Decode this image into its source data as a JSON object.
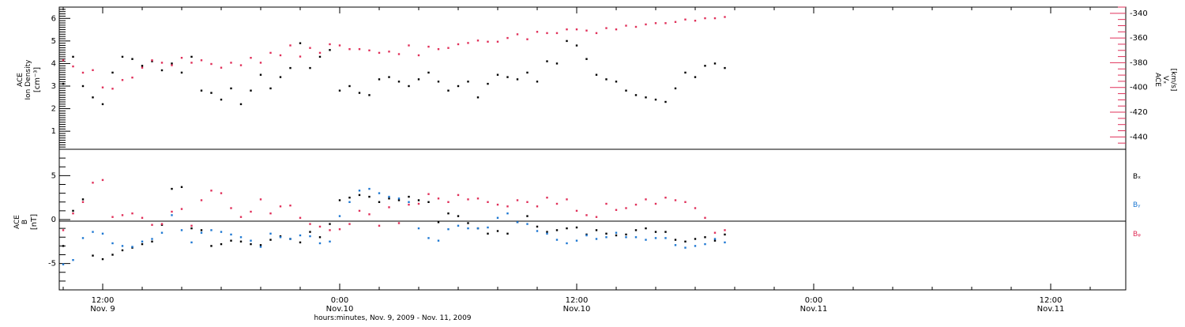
{
  "colors": {
    "black": "#000000",
    "pink": "#e0305a",
    "blue": "#1e78d2",
    "axis": "#000000"
  },
  "x_axis": {
    "caption": "hours:minutes, Nov.  9, 2009 - Nov. 11, 2009",
    "range_hours": [
      -14.2,
      39.8
    ],
    "ticks": [
      {
        "h": -12,
        "time": "12:00",
        "date": "Nov. 9"
      },
      {
        "h": 0,
        "time": "0:00",
        "date": "Nov.10"
      },
      {
        "h": 12,
        "time": "12:00",
        "date": "Nov.10"
      },
      {
        "h": 24,
        "time": "0:00",
        "date": "Nov.11"
      },
      {
        "h": 36,
        "time": "12:00",
        "date": "Nov.11"
      }
    ]
  },
  "chart_data": [
    {
      "type": "scatter",
      "title": "",
      "ylabel_lines": [
        "ACE",
        "Ion Density"
      ],
      "yunit": "[cm⁻³]",
      "ylim": [
        0.2,
        6.5
      ],
      "yticks": [
        1,
        2,
        3,
        4,
        5,
        6
      ],
      "y2label_lines": [
        "ACE",
        "Vₓ"
      ],
      "y2unit": "[km/s]",
      "y2lim": [
        -450,
        -335
      ],
      "y2ticks": [
        -440,
        -420,
        -400,
        -380,
        -360,
        -340
      ],
      "series": [
        {
          "key": "density",
          "color": "pink_black",
          "axis": "left",
          "x": [
            -14,
            -13.5,
            -13,
            -12.5,
            -12,
            -11.5,
            -11,
            -10.5,
            -10,
            -9.5,
            -9,
            -8.5,
            -8,
            -7.5,
            -7,
            -6.5,
            -6,
            -5.5,
            -5,
            -4.5,
            -4,
            -3.5,
            -3,
            -2.5,
            -2,
            -1.5,
            -1,
            -0.5,
            0,
            0.5,
            1,
            1.5,
            2,
            2.5,
            3,
            3.5,
            4,
            4.5,
            5,
            5.5,
            6,
            6.5,
            7,
            7.5,
            8,
            8.5,
            9,
            9.5,
            10,
            10.5,
            11,
            11.5,
            12,
            12.5,
            13,
            13.5,
            14,
            14.5,
            15,
            15.5,
            16,
            16.5,
            17,
            17.5,
            18,
            18.5,
            19,
            19.5
          ],
          "y": [
            3.1,
            4.3,
            3.0,
            2.5,
            2.2,
            3.6,
            4.3,
            4.2,
            3.9,
            4.1,
            3.7,
            4.0,
            3.6,
            4.3,
            2.8,
            2.7,
            2.4,
            2.9,
            2.2,
            2.8,
            3.5,
            2.9,
            3.4,
            3.8,
            4.9,
            3.8,
            4.3,
            4.6,
            2.8,
            3.0,
            2.7,
            2.6,
            3.3,
            3.4,
            3.2,
            3.0,
            3.3,
            3.6,
            3.2,
            2.8,
            3.0,
            3.2,
            2.5,
            3.1,
            3.5,
            3.4,
            3.3,
            3.6,
            3.2,
            4.1,
            4.0,
            5.0,
            4.8,
            4.2,
            3.5,
            3.3,
            3.2,
            2.8,
            2.6,
            2.5,
            2.4,
            2.3,
            2.9,
            3.6,
            3.4,
            3.9,
            4.0,
            3.8
          ]
        },
        {
          "key": "vx",
          "color": "pink",
          "axis": "right",
          "x": [
            -14,
            -13.5,
            -13,
            -12.5,
            -12,
            -11.5,
            -11,
            -10.5,
            -10,
            -9.5,
            -9,
            -8.5,
            -8,
            -7.5,
            -7,
            -6.5,
            -6,
            -5.5,
            -5,
            -4.5,
            -4,
            -3.5,
            -3,
            -2.5,
            -2,
            -1.5,
            -1,
            -0.5,
            0,
            0.5,
            1,
            1.5,
            2,
            2.5,
            3,
            3.5,
            4,
            4.5,
            5,
            5.5,
            6,
            6.5,
            7,
            7.5,
            8,
            8.5,
            9,
            9.5,
            10,
            10.5,
            11,
            11.5,
            12,
            12.5,
            13,
            13.5,
            14,
            14.5,
            15,
            15.5,
            16,
            16.5,
            17,
            17.5,
            18,
            18.5,
            19,
            19.5
          ],
          "y": [
            -378,
            -383,
            -388,
            -386,
            -400,
            -401,
            -394,
            -392,
            -384,
            -378,
            -380,
            -382,
            -376,
            -380,
            -378,
            -381,
            -384,
            -380,
            -382,
            -376,
            -380,
            -372,
            -374,
            -366,
            -375,
            -368,
            -372,
            -365,
            -366,
            -369,
            -369,
            -370,
            -372,
            -371,
            -373,
            -366,
            -374,
            -367,
            -369,
            -368,
            -365,
            -364,
            -362,
            -363,
            -363,
            -360,
            -357,
            -361,
            -355,
            -356,
            -356,
            -353,
            -353,
            -354,
            -356,
            -352,
            -353,
            -350,
            -351,
            -349,
            -348,
            -348,
            -347,
            -345,
            -346,
            -344,
            -344,
            -343
          ]
        }
      ]
    },
    {
      "type": "scatter",
      "title": "",
      "ylabel_lines": [
        "ACE",
        "B"
      ],
      "yunit": "[nT]",
      "ylim": [
        -8,
        8
      ],
      "yticks": [
        -5,
        0,
        5
      ],
      "legend_position": "right",
      "series": [
        {
          "name": "Bₓ",
          "color": "black",
          "x": [
            -14,
            -13.5,
            -13,
            -12.5,
            -12,
            -11.5,
            -11,
            -10.5,
            -10,
            -9.5,
            -9,
            -8.5,
            -8,
            -7.5,
            -7,
            -6.5,
            -6,
            -5.5,
            -5,
            -4.5,
            -4,
            -3.5,
            -3,
            -2.5,
            -2,
            -1.5,
            -1,
            -0.5,
            0,
            0.5,
            1,
            1.5,
            2,
            2.5,
            3,
            3.5,
            4,
            4.5,
            5,
            5.5,
            6,
            6.5,
            7,
            7.5,
            8,
            8.5,
            9,
            9.5,
            10,
            10.5,
            11,
            11.5,
            12,
            12.5,
            13,
            13.5,
            14,
            14.5,
            15,
            15.5,
            16,
            16.5,
            17,
            17.5,
            18,
            18.5,
            19,
            19.5
          ],
          "y": [
            -3,
            1,
            2.3,
            -4.1,
            -4.5,
            -4.0,
            -3.5,
            -3.2,
            -2.8,
            -2.5,
            -0.6,
            3.5,
            3.7,
            -1.0,
            -1.2,
            -3.0,
            -2.8,
            -2.4,
            -2.5,
            -2.8,
            -2.9,
            -2.3,
            -1.9,
            -2.2,
            -2.6,
            -1.4,
            -2.0,
            -0.5,
            2.2,
            2.5,
            2.8,
            2.6,
            2.0,
            2.4,
            2.2,
            2.6,
            2.2,
            2.0,
            -0.3,
            0.7,
            0.4,
            -0.4,
            -1.0,
            -1.6,
            -1.3,
            -1.6,
            -0.3,
            0.4,
            -0.8,
            -1.4,
            -1.2,
            -1.0,
            -0.9,
            -1.7,
            -1.2,
            -1.6,
            -1.8,
            -1.7,
            -1.2,
            -1.0,
            -1.4,
            -1.4,
            -2.3,
            -2.5,
            -2.2,
            -2.0,
            -2.4,
            -1.7
          ]
        },
        {
          "name": "Bᵧ",
          "color": "blue",
          "x": [
            -14,
            -13.5,
            -13,
            -12.5,
            -12,
            -11.5,
            -11,
            -10.5,
            -10,
            -9.5,
            -9,
            -8.5,
            -8,
            -7.5,
            -7,
            -6.5,
            -6,
            -5.5,
            -5,
            -4.5,
            -4,
            -3.5,
            -3,
            -2.5,
            -2,
            -1.5,
            -1,
            -0.5,
            0,
            0.5,
            1,
            1.5,
            2,
            2.5,
            3,
            3.5,
            4,
            4.5,
            5,
            5.5,
            6,
            6.5,
            7,
            7.5,
            8,
            8.5,
            9,
            9.5,
            10,
            10.5,
            11,
            11.5,
            12,
            12.5,
            13,
            13.5,
            14,
            14.5,
            15,
            15.5,
            16,
            16.5,
            17,
            17.5,
            18,
            18.5,
            19,
            19.5
          ],
          "y": [
            -5.1,
            -4.6,
            -2.1,
            -1.4,
            -1.6,
            -2.7,
            -3.0,
            -3.1,
            -2.5,
            -2.2,
            -1.5,
            0.5,
            -1.2,
            -2.6,
            -1.5,
            -1.2,
            -1.4,
            -1.7,
            -2.0,
            -2.4,
            -3.1,
            -1.6,
            -2.0,
            -2.2,
            -1.8,
            -1.9,
            -2.7,
            -2.5,
            0.4,
            2.0,
            3.3,
            3.5,
            3.0,
            2.6,
            2.4,
            2.0,
            -1.0,
            -2.1,
            -2.4,
            -1.1,
            -0.7,
            -1.0,
            -1.0,
            -0.9,
            0.2,
            0.7,
            -0.3,
            -0.5,
            -1.3,
            -1.6,
            -2.3,
            -2.7,
            -2.4,
            -1.8,
            -2.2,
            -2.0,
            -1.5,
            -2.0,
            -2.0,
            -2.3,
            -2.1,
            -2.1,
            -2.9,
            -3.2,
            -3.0,
            -2.8,
            -2.2,
            -2.6
          ]
        },
        {
          "name": "Bᵩ",
          "color": "pink",
          "x": [
            -14,
            -13.5,
            -13,
            -12.5,
            -12,
            -11.5,
            -11,
            -10.5,
            -10,
            -9.5,
            -9,
            -8.5,
            -8,
            -7.5,
            -7,
            -6.5,
            -6,
            -5.5,
            -5,
            -4.5,
            -4,
            -3.5,
            -3,
            -2.5,
            -2,
            -1.5,
            -1,
            -0.5,
            0,
            0.5,
            1,
            1.5,
            2,
            2.5,
            3,
            3.5,
            4,
            4.5,
            5,
            5.5,
            6,
            6.5,
            7,
            7.5,
            8,
            8.5,
            9,
            9.5,
            10,
            10.5,
            11,
            11.5,
            12,
            12.5,
            13,
            13.5,
            14,
            14.5,
            15,
            15.5,
            16,
            16.5,
            17,
            17.5,
            18,
            18.5,
            19,
            19.5
          ],
          "y": [
            -1.2,
            0.7,
            2.0,
            4.2,
            4.5,
            0.3,
            0.5,
            0.7,
            0.2,
            -0.6,
            -0.5,
            0.9,
            1.2,
            -0.7,
            2.2,
            3.3,
            3.0,
            1.3,
            0.3,
            0.9,
            2.3,
            0.7,
            1.5,
            1.6,
            0.2,
            -0.5,
            -0.8,
            -1.2,
            -1.1,
            -0.5,
            1.0,
            0.6,
            -0.7,
            1.4,
            -0.4,
            1.7,
            1.8,
            2.9,
            2.4,
            2.0,
            2.8,
            2.3,
            2.4,
            2.0,
            1.7,
            1.5,
            2.2,
            2.0,
            1.5,
            2.5,
            1.8,
            2.3,
            1.0,
            0.5,
            0.3,
            1.8,
            1.1,
            1.3,
            1.7,
            2.3,
            1.8,
            2.5,
            2.2,
            2.0,
            1.3,
            0.2,
            -1.5,
            -1.2
          ]
        }
      ]
    }
  ]
}
